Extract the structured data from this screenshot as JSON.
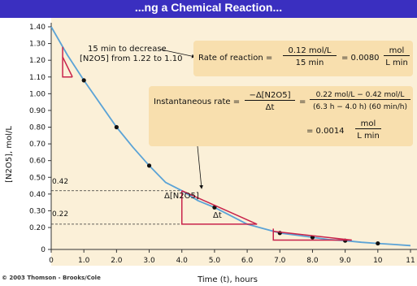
{
  "chart_data": {
    "type": "line",
    "title": "...ng a Chemical Reaction...",
    "xlabel": "Time (t), hours",
    "ylabel": "[N2O5], mol/L",
    "xlim": [
      0,
      11
    ],
    "ylim": [
      0,
      1.4
    ],
    "x_ticks": [
      "0",
      "1.0",
      "2.0",
      "3.0",
      "4.0",
      "5.0",
      "6.0",
      "7.0",
      "8.0",
      "9.0",
      "10",
      "11"
    ],
    "y_ticks": [
      "0",
      "0.20",
      "0.30",
      "0.40",
      "0.50",
      "0.60",
      "0.70",
      "0.80",
      "0.90",
      "1.00",
      "1.10",
      "1.20",
      "1.30",
      "1.40"
    ],
    "series": [
      {
        "x": [
          0,
          0.5,
          1,
          1.5,
          2,
          2.5,
          3,
          3.5,
          4,
          4.5,
          5,
          5.5,
          6,
          6.5,
          7,
          7.5,
          8,
          8.5,
          9,
          9.5,
          10,
          10.5,
          11
        ],
        "y": [
          1.4,
          1.23,
          1.08,
          0.94,
          0.8,
          0.68,
          0.57,
          0.47,
          0.42,
          0.36,
          0.32,
          0.27,
          0.22,
          0.19,
          0.15,
          0.13,
          0.11,
          0.09,
          0.08,
          0.065,
          0.055,
          0.045,
          0.035
        ]
      }
    ],
    "points": {
      "x": [
        1,
        2,
        3,
        5,
        7,
        8,
        9,
        10
      ],
      "y": [
        1.08,
        0.8,
        0.57,
        0.32,
        0.15,
        0.11,
        0.08,
        0.055
      ]
    },
    "colors": {
      "curve": "#5ba3d6",
      "tangent": "#c8234b",
      "title_bar": "#3a2fc0",
      "plot_bg": "#fbf0d8",
      "box_bg": "#f8dfae"
    }
  },
  "annotations": {
    "left_note_line1": "15 min to decrease",
    "left_note_line2": "[N2O5] from 1.22 to 1.10",
    "rate_label": "Rate of reaction =",
    "rate_num": "0.12 mol/L",
    "rate_den": "15 min",
    "rate_eq": "= 0.0080",
    "rate_unit_num": "mol",
    "rate_unit_den": "L min",
    "inst_label": "Instantaneous rate =",
    "inst_num": "−Δ[N2O5]",
    "inst_den": "Δt",
    "inst_eq": "=",
    "inst_num2": "0.22 mol/L − 0.42 mol/L",
    "inst_den2": "(6.3 h − 4.0 h) (60 min/h)",
    "inst_result": "= 0.0014",
    "inst_unit_num": "mol",
    "inst_unit_den": "L min",
    "dy_label": "Δ[N2O5]",
    "dt_label": "Δt",
    "ref_hi": "0.42",
    "ref_lo": "0.22"
  },
  "credit": "© 2003 Thomson - Brooks/Cole"
}
